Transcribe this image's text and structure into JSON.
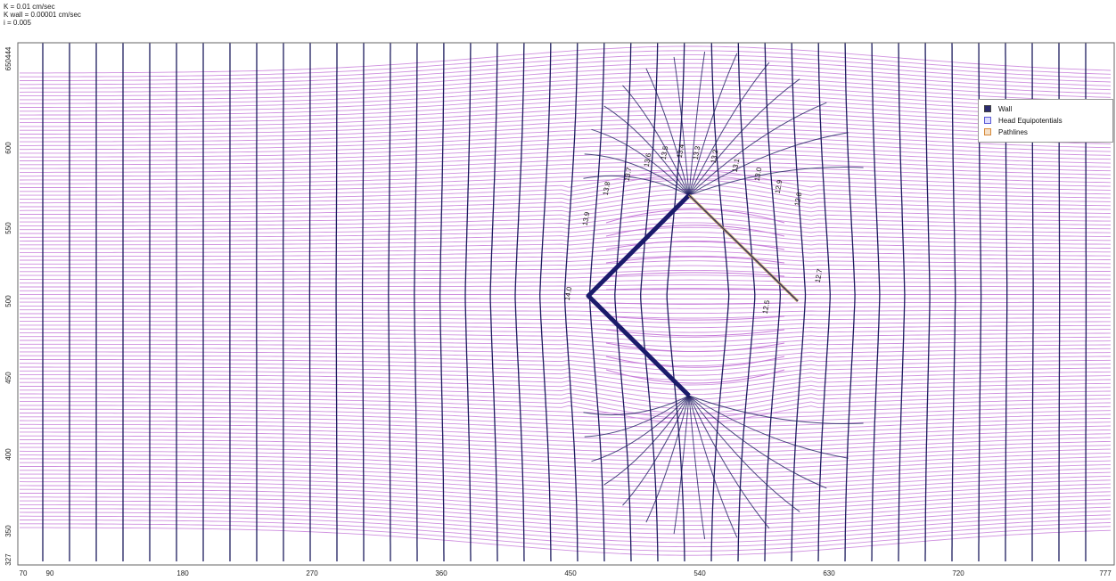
{
  "header": {
    "line1": "K = 0.01 cm/sec",
    "line2": "K wall = 0.00001 cm/sec",
    "line3": "i = 0.005"
  },
  "legend": {
    "items": [
      {
        "label": "Wall",
        "icon": "wall-icon",
        "color": "#2b2b6e"
      },
      {
        "label": "Head Equipotentials",
        "icon": "equipotential-icon",
        "color": "#5b5bd6"
      },
      {
        "label": "Pathlines",
        "icon": "pathline-icon",
        "color": "#d68a3a"
      }
    ]
  },
  "x_axis": {
    "ticks": [
      "70",
      "90",
      "180",
      "270",
      "360",
      "450",
      "540",
      "630",
      "720",
      "777"
    ]
  },
  "y_axis": {
    "ticks": [
      "650444",
      "600",
      "550",
      "500",
      "450",
      "400",
      "350",
      "327"
    ]
  },
  "contours": {
    "labels": [
      "14.0",
      "13.9",
      "13.8",
      "13.7",
      "13.6",
      "13.5",
      "13.4",
      "13.3",
      "13.2",
      "13.1",
      "13.0",
      "12.9",
      "12.8",
      "12.7",
      "12.5"
    ]
  },
  "colors": {
    "pathline": "#c77bd9",
    "equipotential": "#1c1c5e",
    "wall": "#1b1b6b",
    "wall_tan": "#b89a5a"
  }
}
